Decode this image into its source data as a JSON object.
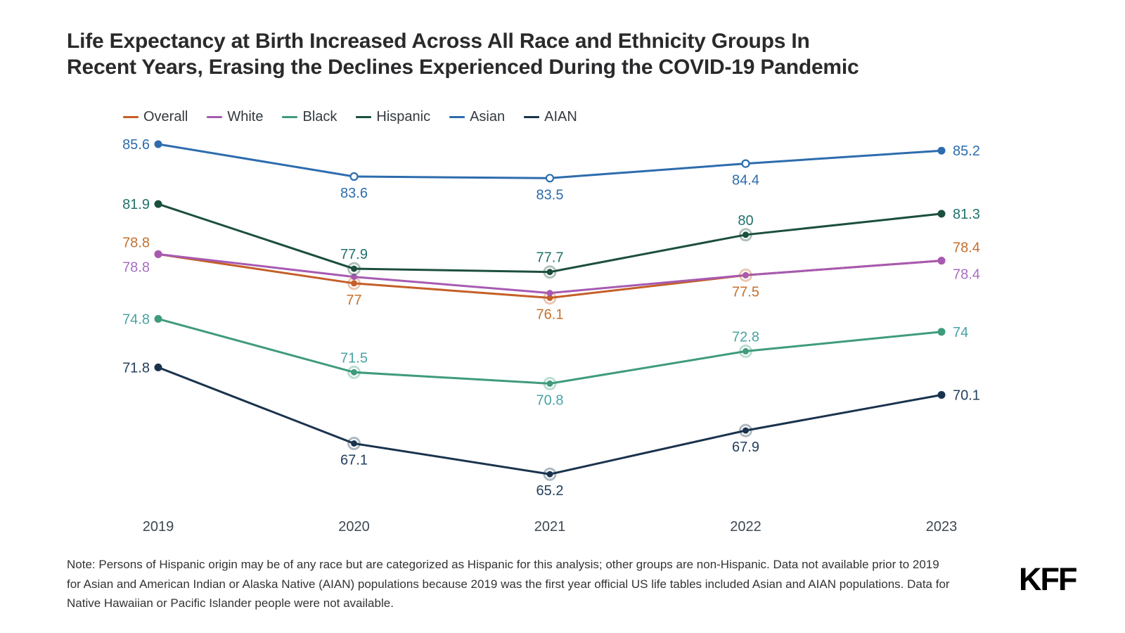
{
  "header": {
    "title_line1": "Life Expectancy at Birth Increased Across All Race and Ethnicity Groups In",
    "title_line2": "Recent Years, Erasing the Declines Experienced During the COVID-19 Pandemic"
  },
  "chart_data": {
    "type": "line",
    "title": "Life Expectancy at Birth Increased Across All Race and Ethnicity Groups In Recent Years, Erasing the Declines Experienced During the COVID-19 Pandemic",
    "x": [
      2019,
      2020,
      2021,
      2022,
      2023
    ],
    "x_tick_labels": [
      "2019",
      "2020",
      "2021",
      "2022",
      "2023"
    ],
    "ylim": [
      64,
      87
    ],
    "grid": false,
    "legend_position": "top-left",
    "axes_hidden": true,
    "series": [
      {
        "name": "Overall",
        "color": "#c45f27",
        "label_color": "#c4702e",
        "values": [
          78.8,
          77,
          76.1,
          77.5,
          78.4
        ],
        "point_labels": [
          "78.8",
          "77",
          "76.1",
          "77.5",
          "78.4"
        ],
        "label_positions": [
          "left-above",
          "below",
          "below",
          "below",
          "right-above"
        ],
        "mid_marker": "halo"
      },
      {
        "name": "White",
        "color": "#a75ab2",
        "label_color": "#a76ec2",
        "values": [
          78.8,
          77.4,
          76.4,
          77.5,
          78.4
        ],
        "point_labels": [
          "78.8",
          null,
          null,
          null,
          "78.4"
        ],
        "label_positions": [
          "left-below",
          null,
          null,
          null,
          "right-below"
        ],
        "mid_marker": "plain"
      },
      {
        "name": "Black",
        "color": "#3f9b7d",
        "label_color": "#4aa3a3",
        "values": [
          74.8,
          71.5,
          70.8,
          72.8,
          74
        ],
        "point_labels": [
          "74.8",
          "71.5",
          "70.8",
          "72.8",
          "74"
        ],
        "label_positions": [
          "left",
          "above",
          "below",
          "above",
          "right"
        ],
        "mid_marker": "halo"
      },
      {
        "name": "Hispanic",
        "color": "#1c4f3d",
        "label_color": "#20726a",
        "values": [
          81.9,
          77.9,
          77.7,
          80,
          81.3
        ],
        "point_labels": [
          "81.9",
          "77.9",
          "77.7",
          "80",
          "81.3"
        ],
        "label_positions": [
          "left",
          "above",
          "above",
          "above",
          "right"
        ],
        "mid_marker": "halo"
      },
      {
        "name": "Asian",
        "color": "#2d6cad",
        "label_color": "#2d6cad",
        "values": [
          85.6,
          83.6,
          83.5,
          84.4,
          85.2
        ],
        "point_labels": [
          "85.6",
          "83.6",
          "83.5",
          "84.4",
          "85.2"
        ],
        "label_positions": [
          "left",
          "below",
          "below",
          "below",
          "right"
        ],
        "mid_marker": "hollow"
      },
      {
        "name": "AIAN",
        "color": "#1a334d",
        "label_color": "#24405e",
        "values": [
          71.8,
          67.1,
          65.2,
          67.9,
          70.1
        ],
        "point_labels": [
          "71.8",
          "67.1",
          "65.2",
          "67.9",
          "70.1"
        ],
        "label_positions": [
          "left",
          "below",
          "below",
          "below",
          "right"
        ],
        "mid_marker": "halo"
      }
    ]
  },
  "note": {
    "line1": "Note: Persons of Hispanic origin may be of any race but are categorized as Hispanic for this analysis; other groups are non-Hispanic. Data not available prior to 2019",
    "line2": "for Asian and American Indian or Alaska Native (AIAN) populations because 2019 was the first year official US life tables included Asian and AIAN populations. Data for",
    "line3": "Native Hawaiian or  Pacific Islander people were not available."
  },
  "branding": {
    "logo_text": "KFF"
  }
}
